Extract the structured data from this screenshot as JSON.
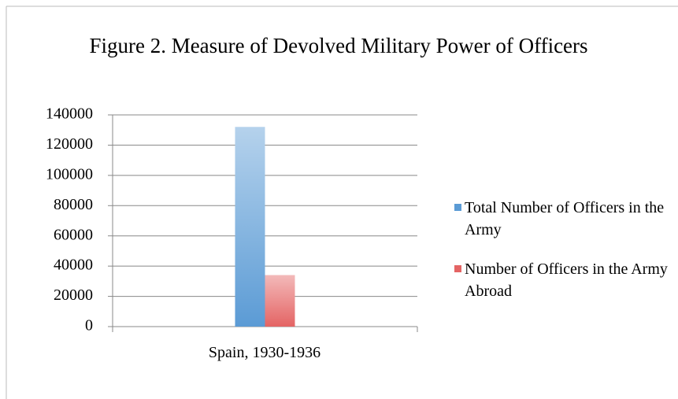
{
  "chart_data": {
    "type": "bar",
    "title": "Figure 2. Measure of Devolved Military Power of Officers",
    "categories": [
      "Spain, 1930-1936"
    ],
    "series": [
      {
        "name": "Total Number of Officers in the Army",
        "color": "#5b9bd5",
        "values": [
          132000
        ]
      },
      {
        "name": "Number of Officers in the Army Abroad",
        "color": "#e46464",
        "values": [
          34000
        ]
      }
    ],
    "ylim": [
      0,
      140000
    ],
    "yticks": [
      0,
      20000,
      40000,
      60000,
      80000,
      100000,
      120000,
      140000
    ],
    "grid": true,
    "legend": "right"
  }
}
